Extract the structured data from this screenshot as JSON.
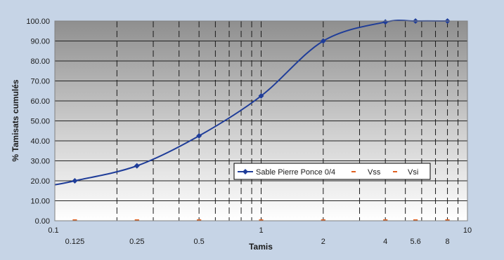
{
  "chart_data": {
    "type": "line",
    "xscale": "log",
    "xlabel": "Tamis",
    "ylabel": "% Tamisats cumulés",
    "xlim": [
      0.1,
      10
    ],
    "ylim": [
      0,
      100
    ],
    "y_ticks": [
      "0.00",
      "10.00",
      "20.00",
      "30.00",
      "40.00",
      "50.00",
      "60.00",
      "70.00",
      "80.00",
      "90.00",
      "100.00"
    ],
    "x_decade_labels": [
      "0.1",
      "1",
      "10"
    ],
    "x_sieve_labels": [
      "0.125",
      "0.25",
      "0.5",
      "1",
      "2",
      "4",
      "5.6",
      "8"
    ],
    "x_sieve_values": [
      0.125,
      0.25,
      0.5,
      1,
      2,
      4,
      5.6,
      8
    ],
    "grid": true,
    "legend_position": "right",
    "colors": {
      "series_main": "#1f3d99",
      "series_vss": "#e06020",
      "series_vsi": "#e06020"
    },
    "series": [
      {
        "name": "Sable Pierre Ponce 0/4",
        "x": [
          0.1,
          0.125,
          0.25,
          0.5,
          1,
          2,
          4,
          5.6,
          8
        ],
        "values": [
          18.0,
          20.0,
          27.5,
          42.5,
          62.5,
          90.0,
          99.5,
          100.0,
          100.0
        ]
      },
      {
        "name": "Vss",
        "x": [
          0.125,
          0.25,
          0.5,
          1,
          2,
          4,
          5.6,
          8
        ],
        "values": [
          0,
          0,
          0,
          0,
          0,
          0,
          0,
          0
        ]
      },
      {
        "name": "Vsi",
        "x": [
          0.125,
          0.25,
          0.5,
          1,
          2,
          4,
          5.6,
          8
        ],
        "values": [
          0,
          0,
          0,
          0,
          0,
          0,
          0,
          0
        ]
      }
    ]
  }
}
